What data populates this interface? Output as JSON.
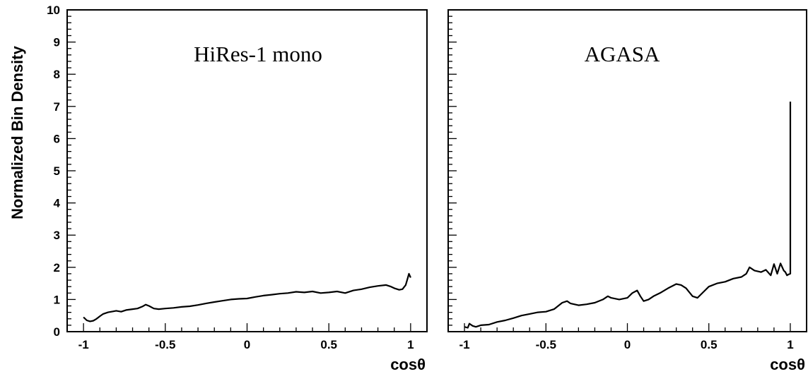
{
  "figure": {
    "ylabel": "Normalized Bin Density",
    "xlabel": "cosθ",
    "ylim": [
      0,
      10
    ],
    "xlim": [
      -1.1,
      1.1
    ],
    "yticks": [
      0,
      1,
      2,
      3,
      4,
      5,
      6,
      7,
      8,
      9,
      10
    ],
    "xticks": [
      -1,
      -0.5,
      0,
      0.5,
      1
    ],
    "xtick_labels": [
      "-1",
      "-0.5",
      "0",
      "0.5",
      "1"
    ],
    "ytick_labels": [
      "0",
      "1",
      "2",
      "3",
      "4",
      "5",
      "6",
      "7",
      "8",
      "9",
      "10"
    ],
    "colors": {
      "line": "#000000",
      "background": "#ffffff"
    }
  },
  "chart_data": [
    {
      "type": "line",
      "title": "HiRes-1 mono",
      "xlabel": "cosθ",
      "ylabel": "Normalized Bin Density",
      "xlim": [
        -1.1,
        1.1
      ],
      "ylim": [
        0,
        10
      ],
      "grid": false,
      "series": [
        {
          "x": [
            -1.0,
            -0.98,
            -0.96,
            -0.94,
            -0.92,
            -0.9,
            -0.88,
            -0.85,
            -0.82,
            -0.8,
            -0.77,
            -0.74,
            -0.7,
            -0.67,
            -0.64,
            -0.62,
            -0.6,
            -0.57,
            -0.54,
            -0.5,
            -0.45,
            -0.4,
            -0.35,
            -0.3,
            -0.25,
            -0.2,
            -0.15,
            -0.1,
            -0.05,
            0.0,
            0.05,
            0.1,
            0.15,
            0.2,
            0.25,
            0.3,
            0.35,
            0.4,
            0.45,
            0.5,
            0.55,
            0.6,
            0.65,
            0.7,
            0.75,
            0.8,
            0.85,
            0.88,
            0.9,
            0.93,
            0.95,
            0.97,
            0.98,
            0.99,
            1.0
          ],
          "y": [
            0.45,
            0.35,
            0.32,
            0.34,
            0.4,
            0.48,
            0.55,
            0.6,
            0.63,
            0.65,
            0.62,
            0.67,
            0.7,
            0.72,
            0.78,
            0.84,
            0.8,
            0.72,
            0.7,
            0.72,
            0.74,
            0.77,
            0.79,
            0.83,
            0.88,
            0.92,
            0.96,
            1.0,
            1.02,
            1.03,
            1.08,
            1.12,
            1.15,
            1.18,
            1.2,
            1.24,
            1.22,
            1.25,
            1.2,
            1.22,
            1.25,
            1.2,
            1.28,
            1.32,
            1.38,
            1.42,
            1.45,
            1.4,
            1.35,
            1.3,
            1.32,
            1.45,
            1.62,
            1.8,
            1.68
          ]
        }
      ]
    },
    {
      "type": "line",
      "title": "AGASA",
      "xlabel": "cosθ",
      "xlim": [
        -1.1,
        1.1
      ],
      "ylim": [
        0,
        10
      ],
      "grid": false,
      "series": [
        {
          "x": [
            -1.0,
            -0.98,
            -0.97,
            -0.95,
            -0.93,
            -0.9,
            -0.85,
            -0.8,
            -0.75,
            -0.7,
            -0.65,
            -0.6,
            -0.55,
            -0.5,
            -0.45,
            -0.4,
            -0.37,
            -0.35,
            -0.3,
            -0.25,
            -0.2,
            -0.15,
            -0.12,
            -0.1,
            -0.05,
            0.0,
            0.03,
            0.06,
            0.08,
            0.1,
            0.13,
            0.16,
            0.2,
            0.25,
            0.3,
            0.33,
            0.36,
            0.4,
            0.43,
            0.47,
            0.5,
            0.55,
            0.6,
            0.65,
            0.7,
            0.73,
            0.75,
            0.78,
            0.82,
            0.85,
            0.88,
            0.9,
            0.92,
            0.94,
            0.96,
            0.97,
            0.98,
            0.99,
            1.0,
            1.0,
            1.0
          ],
          "y": [
            0.15,
            0.12,
            0.25,
            0.18,
            0.15,
            0.2,
            0.22,
            0.3,
            0.35,
            0.42,
            0.5,
            0.55,
            0.6,
            0.62,
            0.7,
            0.9,
            0.95,
            0.88,
            0.82,
            0.85,
            0.9,
            1.0,
            1.1,
            1.05,
            1.0,
            1.05,
            1.2,
            1.28,
            1.1,
            0.95,
            1.0,
            1.1,
            1.2,
            1.35,
            1.48,
            1.45,
            1.35,
            1.1,
            1.05,
            1.25,
            1.4,
            1.5,
            1.55,
            1.65,
            1.7,
            1.8,
            2.0,
            1.9,
            1.85,
            1.92,
            1.75,
            2.1,
            1.8,
            2.12,
            1.9,
            1.85,
            1.75,
            1.78,
            1.8,
            4.5,
            7.15
          ]
        }
      ]
    }
  ]
}
